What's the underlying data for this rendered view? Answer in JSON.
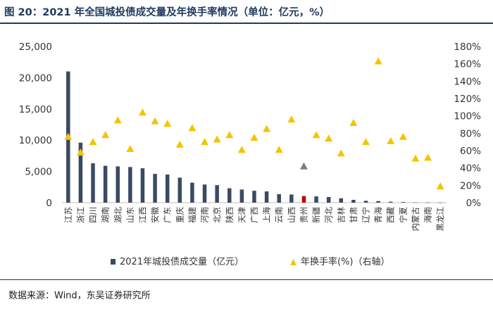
{
  "title": "图 20：2021 年全国城投债成交量及年换手率情况（单位：亿元，%）",
  "source": "数据来源：Wind，东吴证券研究所",
  "colors": {
    "bar": "#3b4a63",
    "bar_highlight": "#c00000",
    "marker": "#f5c400",
    "marker_highlight": "#7f7f7f"
  },
  "chart_data": {
    "type": "bar",
    "categories": [
      "江苏",
      "浙江",
      "四川",
      "湖南",
      "湖北",
      "山东",
      "江西",
      "安徽",
      "广东",
      "重庆",
      "福建",
      "河南",
      "北京",
      "陕西",
      "天津",
      "广西",
      "上海",
      "云南",
      "山西",
      "贵州",
      "新疆",
      "河北",
      "吉林",
      "甘肃",
      "辽宁",
      "青海",
      "西藏",
      "宁夏",
      "内蒙古",
      "海南",
      "黑龙江"
    ],
    "series": [
      {
        "name": "2021年城投债成交量（亿元）",
        "type": "bar",
        "axis": "left",
        "values": [
          21000,
          9600,
          6300,
          5900,
          5800,
          5700,
          5500,
          4600,
          4500,
          4000,
          3200,
          2900,
          2800,
          2300,
          2100,
          1900,
          1800,
          1350,
          1300,
          1050,
          1000,
          900,
          700,
          450,
          300,
          250,
          150,
          100,
          40,
          30,
          10
        ]
      },
      {
        "name": "年换手率(%)（右轴）",
        "type": "scatter",
        "axis": "right",
        "values": [
          76,
          58,
          70,
          78,
          95,
          62,
          104,
          94,
          91,
          67,
          86,
          70,
          73,
          78,
          61,
          75,
          85,
          61,
          96,
          42,
          78,
          74,
          57,
          92,
          70,
          163,
          71,
          76,
          51,
          52,
          19
        ]
      }
    ],
    "highlight_bar": "贵州",
    "highlight_marker": "贵州",
    "left_axis": {
      "ylim": [
        0,
        25000
      ],
      "ticks": [
        "0",
        "5,000",
        "10,000",
        "15,000",
        "20,000",
        "25,000"
      ]
    },
    "right_axis": {
      "ylim": [
        0,
        180
      ],
      "ticks": [
        "0%",
        "20%",
        "40%",
        "60%",
        "80%",
        "100%",
        "120%",
        "140%",
        "160%",
        "180%"
      ]
    },
    "legend_position": "bottom",
    "grid": false
  }
}
